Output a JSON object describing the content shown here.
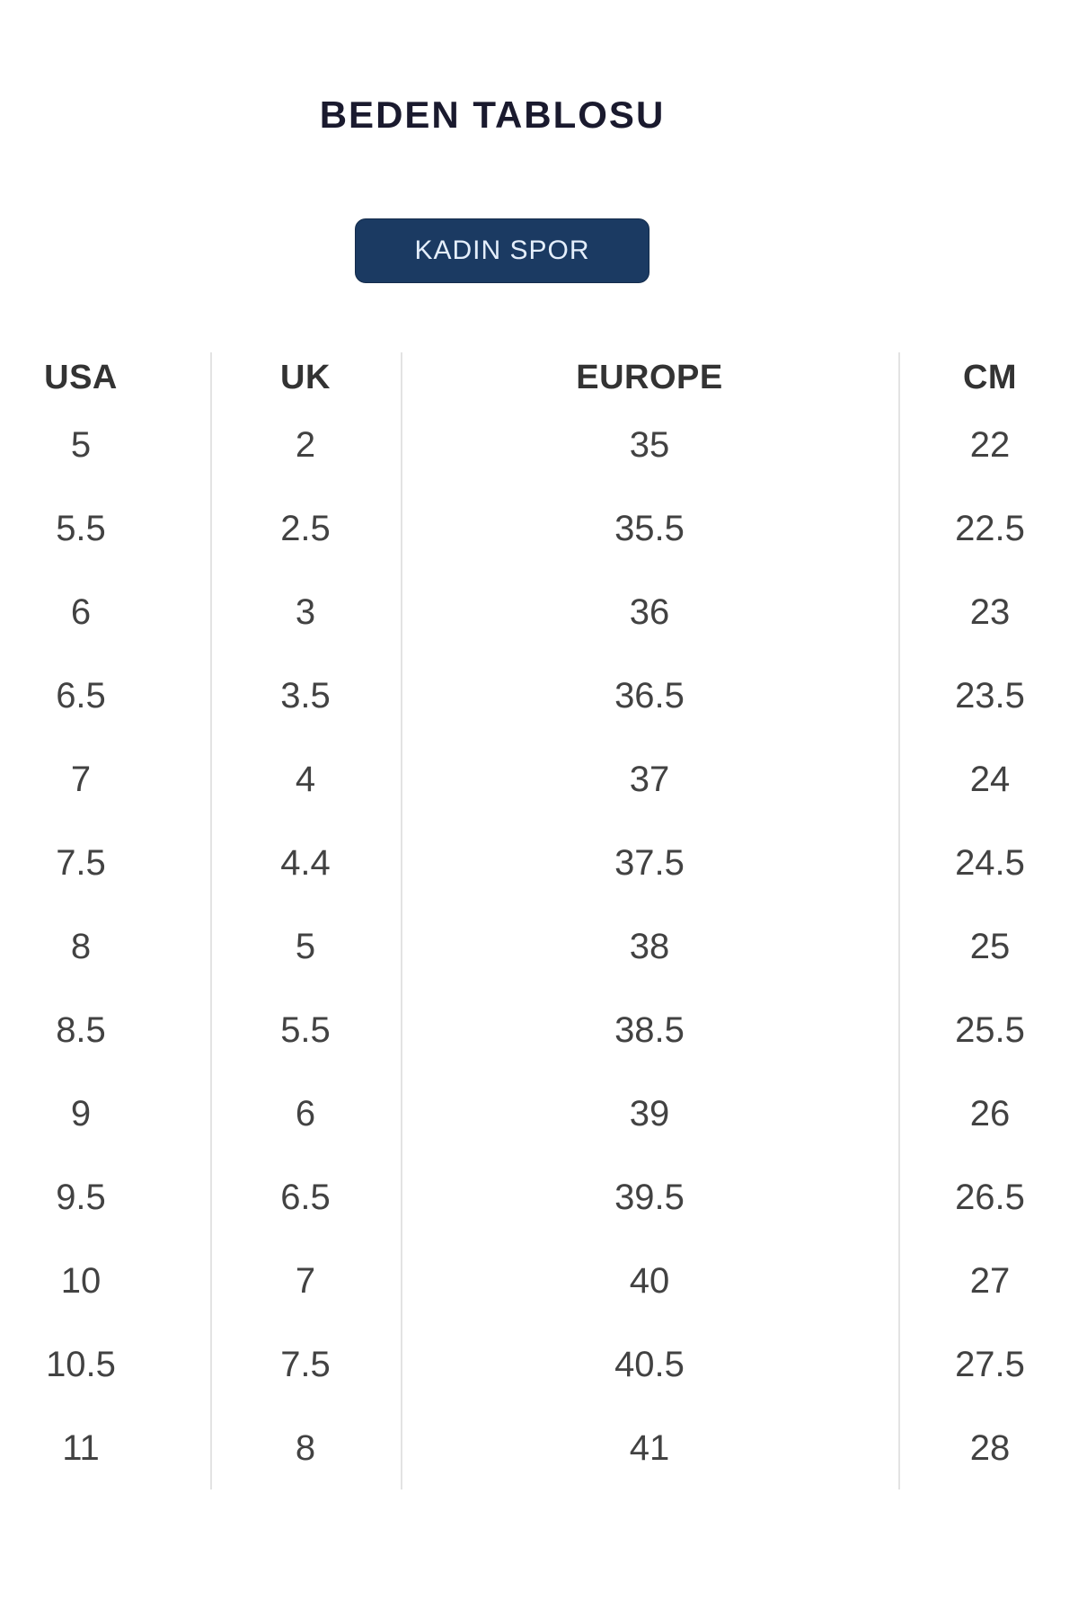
{
  "title": "BEDEN TABLOSU",
  "title_color": "#1a1a2e",
  "category_button": {
    "label": "KADIN SPOR",
    "background": "#1b3a62",
    "text_color": "#e4eefb"
  },
  "table": {
    "divider_color": "#e3e3e3",
    "text_color": "#424242",
    "headers": [
      "USA",
      "UK",
      "EUROPE",
      "CM"
    ],
    "rows": [
      [
        "5",
        "2",
        "35",
        "22"
      ],
      [
        "5.5",
        "2.5",
        "35.5",
        "22.5"
      ],
      [
        "6",
        "3",
        "36",
        "23"
      ],
      [
        "6.5",
        "3.5",
        "36.5",
        "23.5"
      ],
      [
        "7",
        "4",
        "37",
        "24"
      ],
      [
        "7.5",
        "4.4",
        "37.5",
        "24.5"
      ],
      [
        "8",
        "5",
        "38",
        "25"
      ],
      [
        "8.5",
        "5.5",
        "38.5",
        "25.5"
      ],
      [
        "9",
        "6",
        "39",
        "26"
      ],
      [
        "9.5",
        "6.5",
        "39.5",
        "26.5"
      ],
      [
        "10",
        "7",
        "40",
        "27"
      ],
      [
        "10.5",
        "7.5",
        "40.5",
        "27.5"
      ],
      [
        "11",
        "8",
        "41",
        "28"
      ]
    ]
  }
}
